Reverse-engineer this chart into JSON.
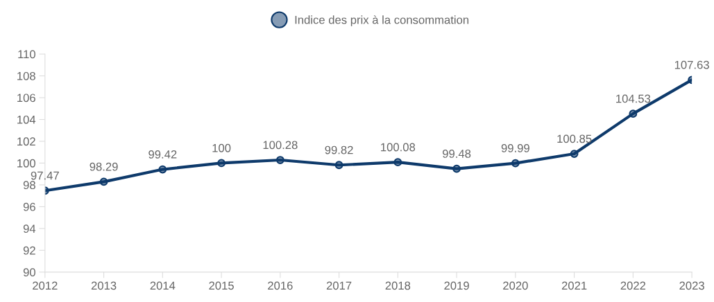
{
  "chart_data": {
    "type": "line",
    "categories": [
      "2012",
      "2013",
      "2014",
      "2015",
      "2016",
      "2017",
      "2018",
      "2019",
      "2020",
      "2021",
      "2022",
      "2023"
    ],
    "series": [
      {
        "name": "Indice des prix à la consommation",
        "color": "#0e3a6b",
        "values": [
          97.47,
          98.29,
          99.42,
          100,
          100.28,
          99.82,
          100.08,
          99.48,
          99.99,
          100.85,
          104.53,
          107.63
        ]
      }
    ],
    "ylim": [
      90,
      110
    ],
    "yticks": [
      90,
      92,
      94,
      96,
      98,
      100,
      102,
      104,
      106,
      108,
      110
    ],
    "grid": false,
    "legend": "top",
    "marker": "circle",
    "line_style": "solid",
    "data_labels": true
  }
}
